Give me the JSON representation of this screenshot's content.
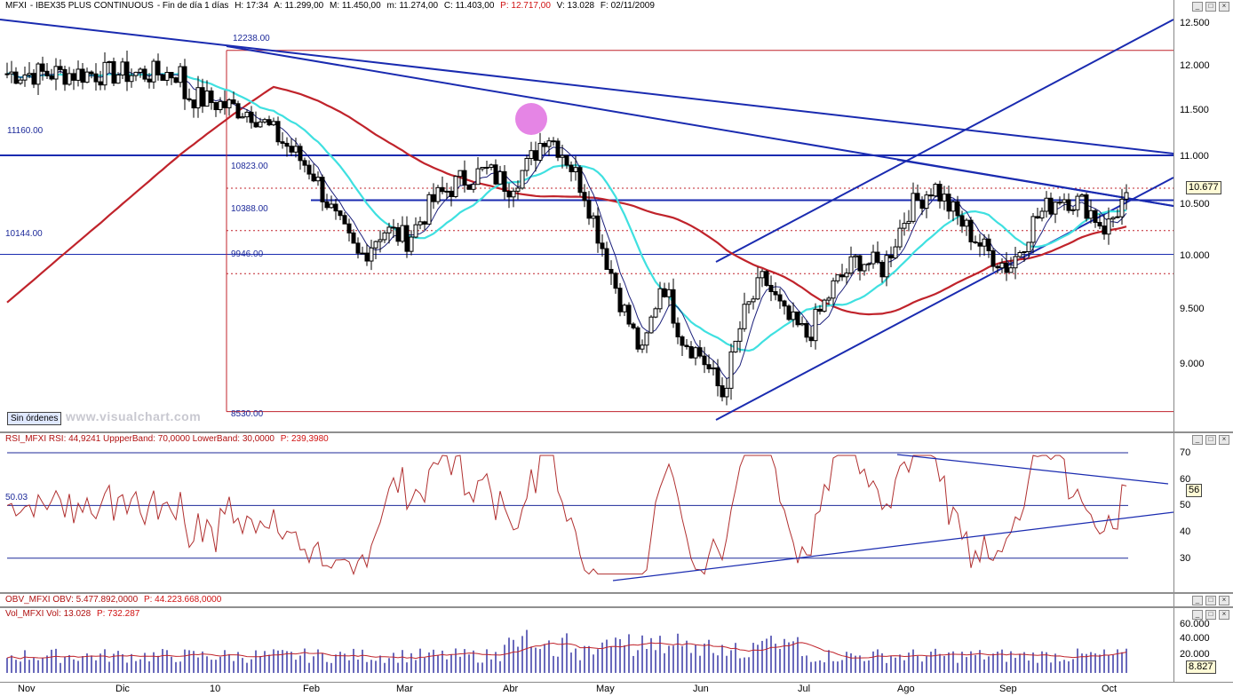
{
  "main": {
    "header": {
      "symbol": "MFXI",
      "name": "IBEX35 PLUS CONTINUOUS",
      "period": "Fin de día 1 días",
      "time": "H: 17:34",
      "open": "A: 11.299,00",
      "high": "M: 11.450,00",
      "low": "m: 11.274,00",
      "close": "C: 11.403,00",
      "pvalue": "P: 12.717,00",
      "volume": "V: 13.028",
      "date": "F: 02/11/2009"
    },
    "price_ticks": [
      "12.500",
      "12.000",
      "11.500",
      "11.000",
      "10.500",
      "10.000",
      "9.500",
      "9.000"
    ],
    "current_price": "10.677",
    "level_labels": [
      "12238.00",
      "11160.00",
      "10823.00",
      "10388.00",
      "10144.00",
      "9946.00",
      "8530.00"
    ],
    "sin_ordenes": "Sin órdenes",
    "watermark": "www.visualchart.com"
  },
  "rsi": {
    "header": "RSI_MFXI RSI: 44,9241  UppperBand: 70,0000  LowerBand: 30,0000",
    "pvalue": "P: 239,3980",
    "ticks": [
      "70",
      "60",
      "50",
      "40",
      "30"
    ],
    "current": "56",
    "left_label": "50.03"
  },
  "obv": {
    "header": "OBV_MFXI OBV: 5.477.892,0000",
    "pvalue": "P: 44.223.668,0000"
  },
  "volume": {
    "header": "Vol_MFXI Vol: 13.028",
    "pvalue": "P: 732.287",
    "ticks": [
      "60.000",
      "40.000",
      "20.000"
    ],
    "current": "8.827"
  },
  "months": [
    "Nov",
    "Dic",
    "10",
    "Feb",
    "Mar",
    "Abr",
    "May",
    "Jun",
    "Jul",
    "Ago",
    "Sep",
    "Oct"
  ],
  "colors": {
    "candle": "#000000",
    "trendline": "#1a2bb0",
    "sma_long": "#c0232b",
    "sma_mid": "#3fe0e0",
    "sma_short": "#1b1f7a",
    "rsi_line": "#b03030",
    "volume_bars": "#2a2aa0",
    "volume_avg": "#c0232b",
    "highlight": "#e070e0"
  },
  "chart_data": [
    {
      "type": "candlestick",
      "title": "MFXI - IBEX35 PLUS CONTINUOUS",
      "x_range": [
        "2008-11-01",
        "2009-10-31"
      ],
      "ylim": [
        8530,
        12600
      ],
      "series": [
        {
          "kind": "ohlc",
          "anchors": [
            [
              "Nov",
              11500
            ],
            [
              "Nov",
              11250
            ],
            [
              "Nov",
              11700
            ],
            [
              "Dic",
              11850
            ],
            [
              "Dic",
              11600
            ],
            [
              "10",
              12000
            ],
            [
              "10",
              12238
            ],
            [
              "10",
              11950
            ],
            [
              "10",
              11600
            ],
            [
              "Feb",
              11000
            ],
            [
              "Feb",
              10500
            ],
            [
              "Feb",
              10100
            ],
            [
              "Feb",
              10400
            ],
            [
              "Mar",
              10300
            ],
            [
              "Mar",
              10700
            ],
            [
              "Mar",
              10900
            ],
            [
              "Mar",
              11000
            ],
            [
              "Abr",
              10850
            ],
            [
              "Abr",
              11050
            ],
            [
              "Abr",
              11400
            ],
            [
              "Abr",
              11160
            ],
            [
              "Abr",
              10800
            ],
            [
              "May",
              10200
            ],
            [
              "May",
              9600
            ],
            [
              "May",
              9100
            ],
            [
              "May",
              9900
            ],
            [
              "May",
              9300
            ],
            [
              "Jun",
              9100
            ],
            [
              "Jun",
              8700
            ],
            [
              "Jun",
              9500
            ],
            [
              "Jun",
              9900
            ],
            [
              "Jun",
              9500
            ],
            [
              "Jul",
              9300
            ],
            [
              "Jul",
              9800
            ],
            [
              "Jul",
              10100
            ],
            [
              "Jul",
              10000
            ],
            [
              "Ago",
              10600
            ],
            [
              "Ago",
              10850
            ],
            [
              "Ago",
              10500
            ],
            [
              "Ago",
              10200
            ],
            [
              "Sep",
              10000
            ],
            [
              "Sep",
              10500
            ],
            [
              "Sep",
              10750
            ],
            [
              "Sep",
              10650
            ],
            [
              "Oct",
              10400
            ],
            [
              "Oct",
              10677
            ]
          ]
        },
        {
          "name": "",
          "kind": "sma_long",
          "color": "#c0232b"
        },
        {
          "name": "",
          "kind": "sma_mid",
          "color": "#3fe0e0"
        }
      ],
      "horizontal_levels": [
        12238,
        11160,
        10823,
        10388,
        10144,
        9946,
        8530
      ],
      "grid": false
    },
    {
      "type": "line",
      "title": "RSI_MFXI",
      "ylim": [
        20,
        75
      ],
      "bands": [
        70,
        50,
        30
      ],
      "last_value": 56
    },
    {
      "type": "bar",
      "title": "Vol_MFXI",
      "ylim": [
        0,
        65000
      ],
      "last_value": 8827
    }
  ]
}
